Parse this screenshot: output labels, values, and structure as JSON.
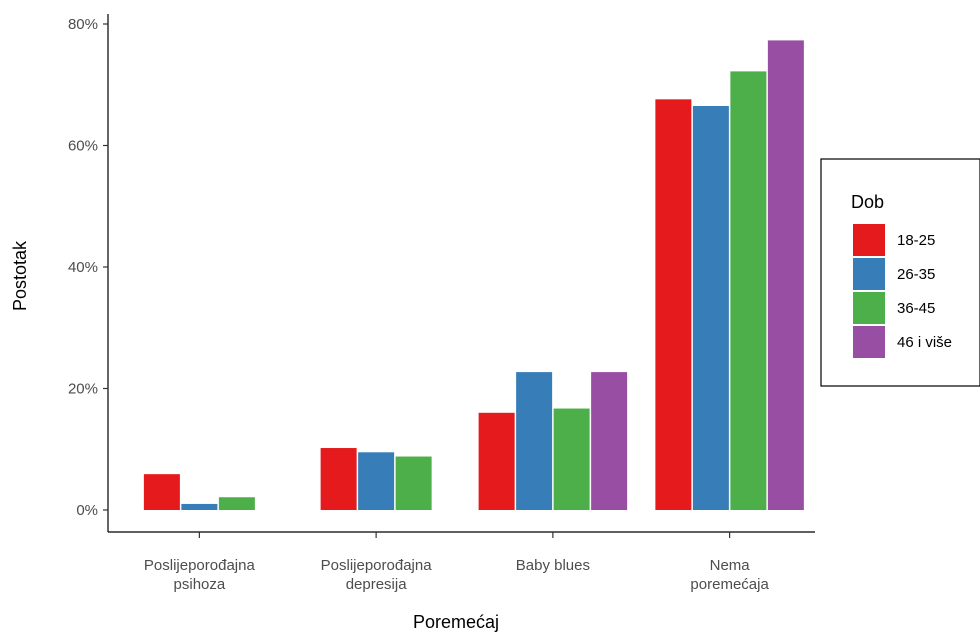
{
  "chart_data": {
    "type": "bar",
    "title": "",
    "xlabel": "Poremećaj",
    "ylabel": "Postotak",
    "ylim": [
      0,
      80
    ],
    "yticks": [
      0,
      20,
      40,
      60,
      80
    ],
    "ytick_labels": [
      "0%",
      "20%",
      "40%",
      "60%",
      "80%"
    ],
    "categories": [
      [
        "Poslijeporođajna",
        "psihoza"
      ],
      [
        "Poslijeporođajna",
        "depresija"
      ],
      [
        "Baby blues"
      ],
      [
        "Nema",
        "poremećaja"
      ]
    ],
    "legend": {
      "title": "Dob",
      "position": "right"
    },
    "series": [
      {
        "name": "18-25",
        "color": "#E41A1C",
        "values": [
          5.9,
          10.2,
          16.0,
          67.6
        ]
      },
      {
        "name": "26-35",
        "color": "#377EB8",
        "values": [
          1.0,
          9.5,
          22.7,
          66.5
        ]
      },
      {
        "name": "36-45",
        "color": "#4DAF4A",
        "values": [
          2.1,
          8.8,
          16.7,
          72.2
        ]
      },
      {
        "name": "46 i više",
        "color": "#984EA3",
        "values": [
          null,
          null,
          22.7,
          77.3
        ]
      }
    ],
    "grid": false
  }
}
